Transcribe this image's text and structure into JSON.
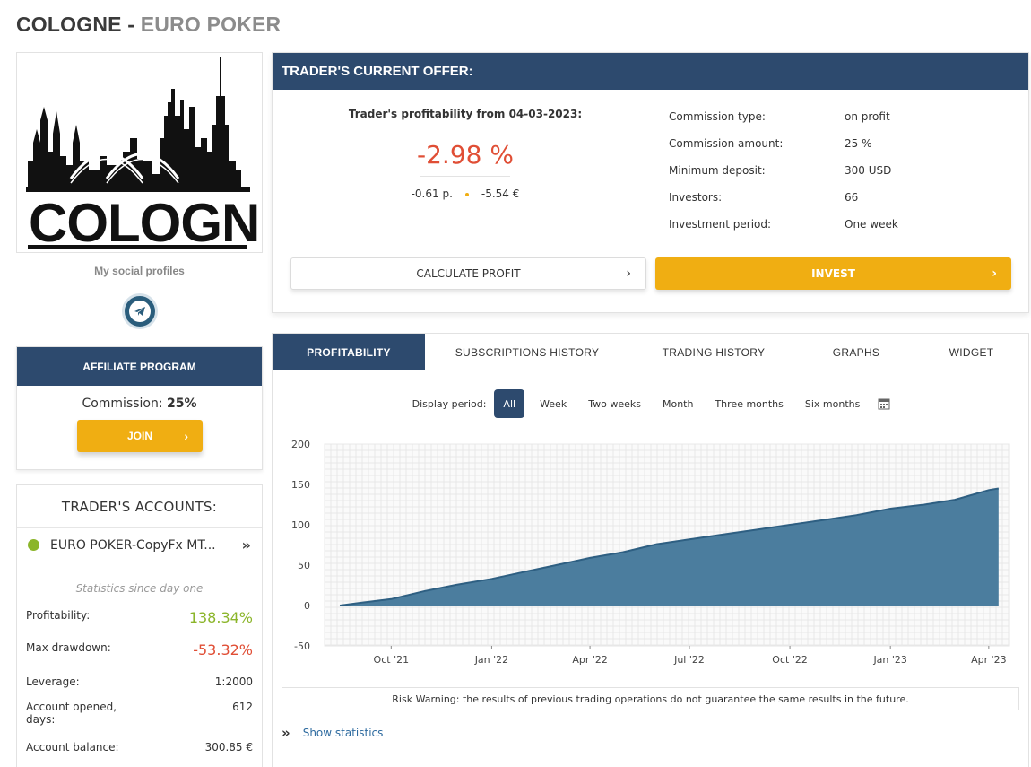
{
  "header": {
    "title_main": "COLOGNE - ",
    "title_sub": "EURO POKER"
  },
  "logo": {
    "text": "COLOGNE"
  },
  "social": {
    "label": "My social profiles",
    "icon": "telegram-icon"
  },
  "affiliate": {
    "title": "AFFILIATE PROGRAM",
    "commission_label": "Commission: ",
    "commission_value": "25%",
    "join_label": "JOIN"
  },
  "accounts": {
    "title": "TRADER'S ACCOUNTS:",
    "account_name": "EURO POKER-CopyFx MT...",
    "stats_since": "Statistics since day one",
    "stats": [
      {
        "label": "Profitability:",
        "value": "138.34%"
      },
      {
        "label": "Max drawdown:",
        "value": "-53.32%"
      },
      {
        "label": "Leverage:",
        "value": "1:2000"
      },
      {
        "label": "Account opened, days:",
        "value": "612"
      },
      {
        "label": "Account balance:",
        "value": "300.85 €"
      }
    ]
  },
  "offer": {
    "title": "TRADER'S CURRENT OFFER:",
    "profit_caption": "Trader's profitability from 04-03-2023:",
    "profit_value": "-2.98 %",
    "points": "-0.61 p.",
    "money": "-5.54 €",
    "details": [
      {
        "label": "Commission type:",
        "value": "on profit"
      },
      {
        "label": "Commission amount:",
        "value": "25 %"
      },
      {
        "label": "Minimum deposit:",
        "value": "300 USD"
      },
      {
        "label": "Investors:",
        "value": "66"
      },
      {
        "label": "Investment period:",
        "value": "One week"
      }
    ],
    "calc_label": "CALCULATE PROFIT",
    "invest_label": "INVEST"
  },
  "tabs": [
    "PROFITABILITY",
    "SUBSCRIPTIONS HISTORY",
    "TRADING HISTORY",
    "GRAPHS",
    "WIDGET"
  ],
  "period": {
    "label": "Display period:",
    "options": [
      "All",
      "Week",
      "Two weeks",
      "Month",
      "Three months",
      "Six months"
    ],
    "selected": "All"
  },
  "chart_data": {
    "type": "area",
    "title": "",
    "xlabel": "",
    "ylabel": "",
    "ylim": [
      -50,
      200
    ],
    "yticks": [
      200,
      150,
      100,
      50,
      0,
      -50
    ],
    "xticks": [
      "Oct '21",
      "Jan '22",
      "Apr '22",
      "Jul '22",
      "Oct '22",
      "Jan '23",
      "Apr '23"
    ],
    "x": [
      "2021-08-15",
      "2021-09-01",
      "2021-10-01",
      "2021-11-01",
      "2021-12-01",
      "2022-01-01",
      "2022-02-01",
      "2022-03-01",
      "2022-04-01",
      "2022-05-01",
      "2022-06-01",
      "2022-07-01",
      "2022-08-01",
      "2022-09-01",
      "2022-10-01",
      "2022-11-01",
      "2022-12-01",
      "2023-01-01",
      "2023-02-01",
      "2023-03-01",
      "2023-04-01",
      "2023-04-10"
    ],
    "values": [
      0,
      3,
      8,
      18,
      26,
      33,
      42,
      50,
      59,
      66,
      76,
      82,
      88,
      94,
      100,
      106,
      112,
      120,
      125,
      131,
      143,
      145
    ],
    "color": "#2e5f82",
    "fill": "#4b7d9e",
    "grid": true
  },
  "risk_warning": "Risk Warning: the results of previous trading operations do not guarantee the same results in the future.",
  "show_statistics": "Show statistics"
}
